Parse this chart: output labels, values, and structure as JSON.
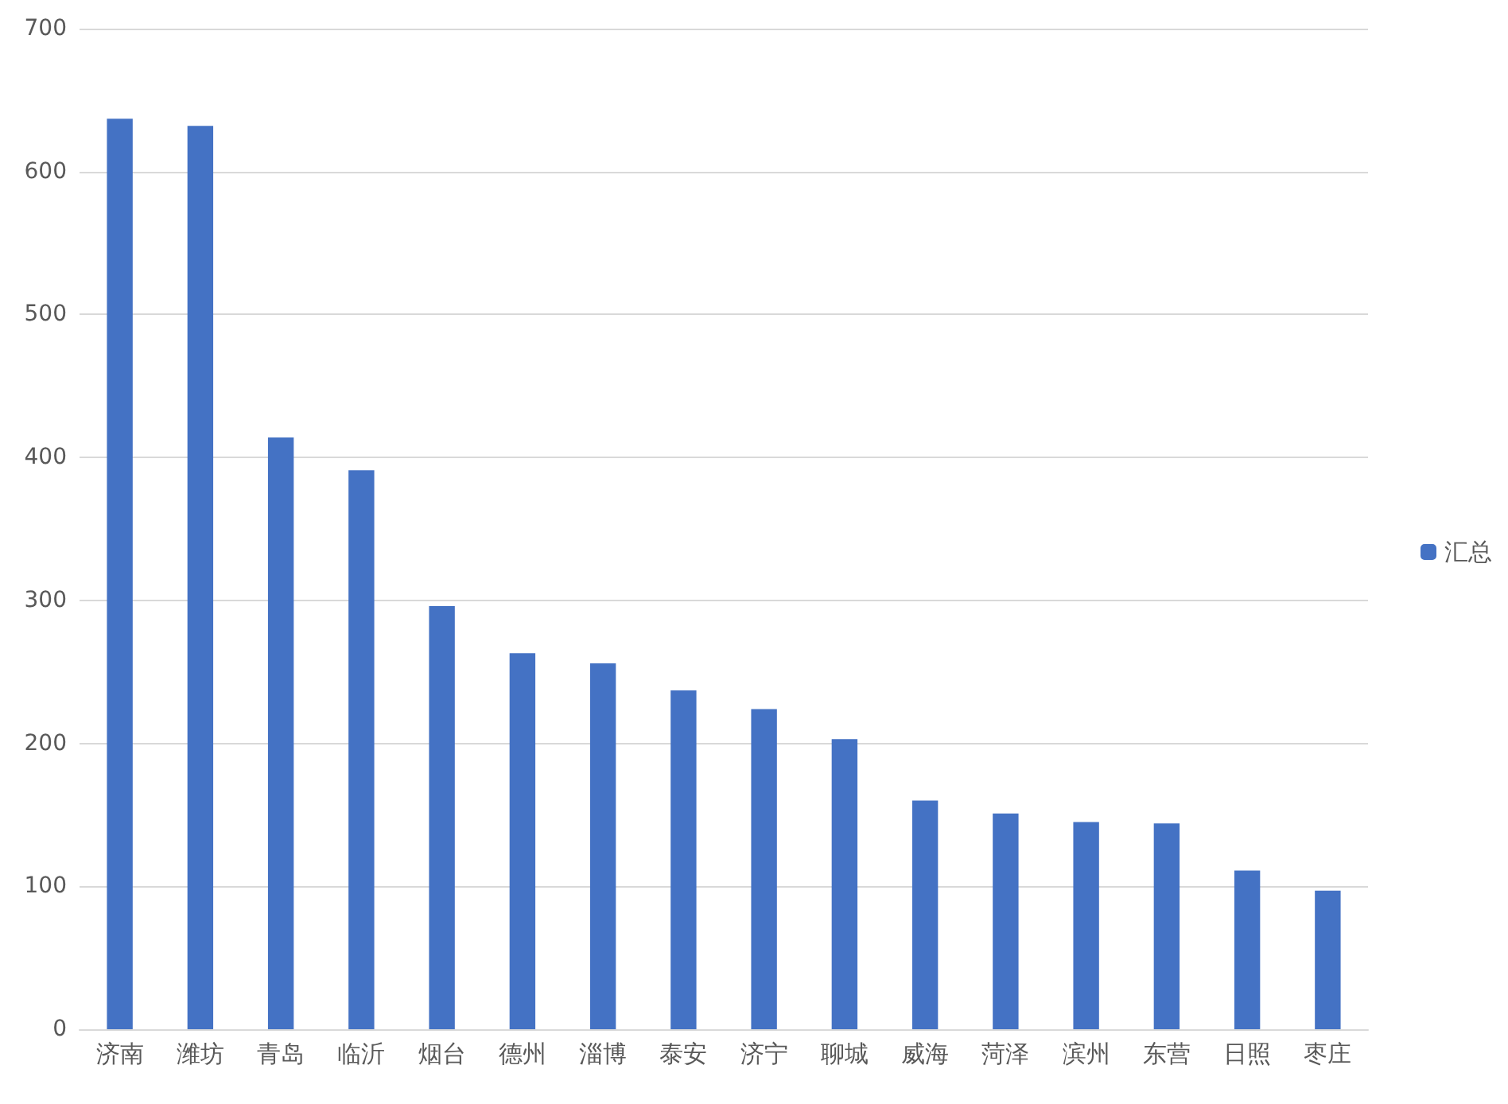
{
  "chart_data": {
    "type": "bar",
    "categories": [
      "济南",
      "潍坊",
      "青岛",
      "临沂",
      "烟台",
      "德州",
      "淄博",
      "泰安",
      "济宁",
      "聊城",
      "威海",
      "菏泽",
      "滨州",
      "东营",
      "日照",
      "枣庄"
    ],
    "series": [
      {
        "name": "汇总",
        "color": "#4472c4",
        "values": [
          637,
          632,
          414,
          391,
          296,
          263,
          256,
          237,
          224,
          203,
          160,
          151,
          145,
          144,
          111,
          97
        ]
      }
    ],
    "ylim": [
      0,
      700
    ],
    "yticks": [
      0,
      100,
      200,
      300,
      400,
      500,
      600,
      700
    ],
    "grid": "y",
    "legend": "right"
  }
}
